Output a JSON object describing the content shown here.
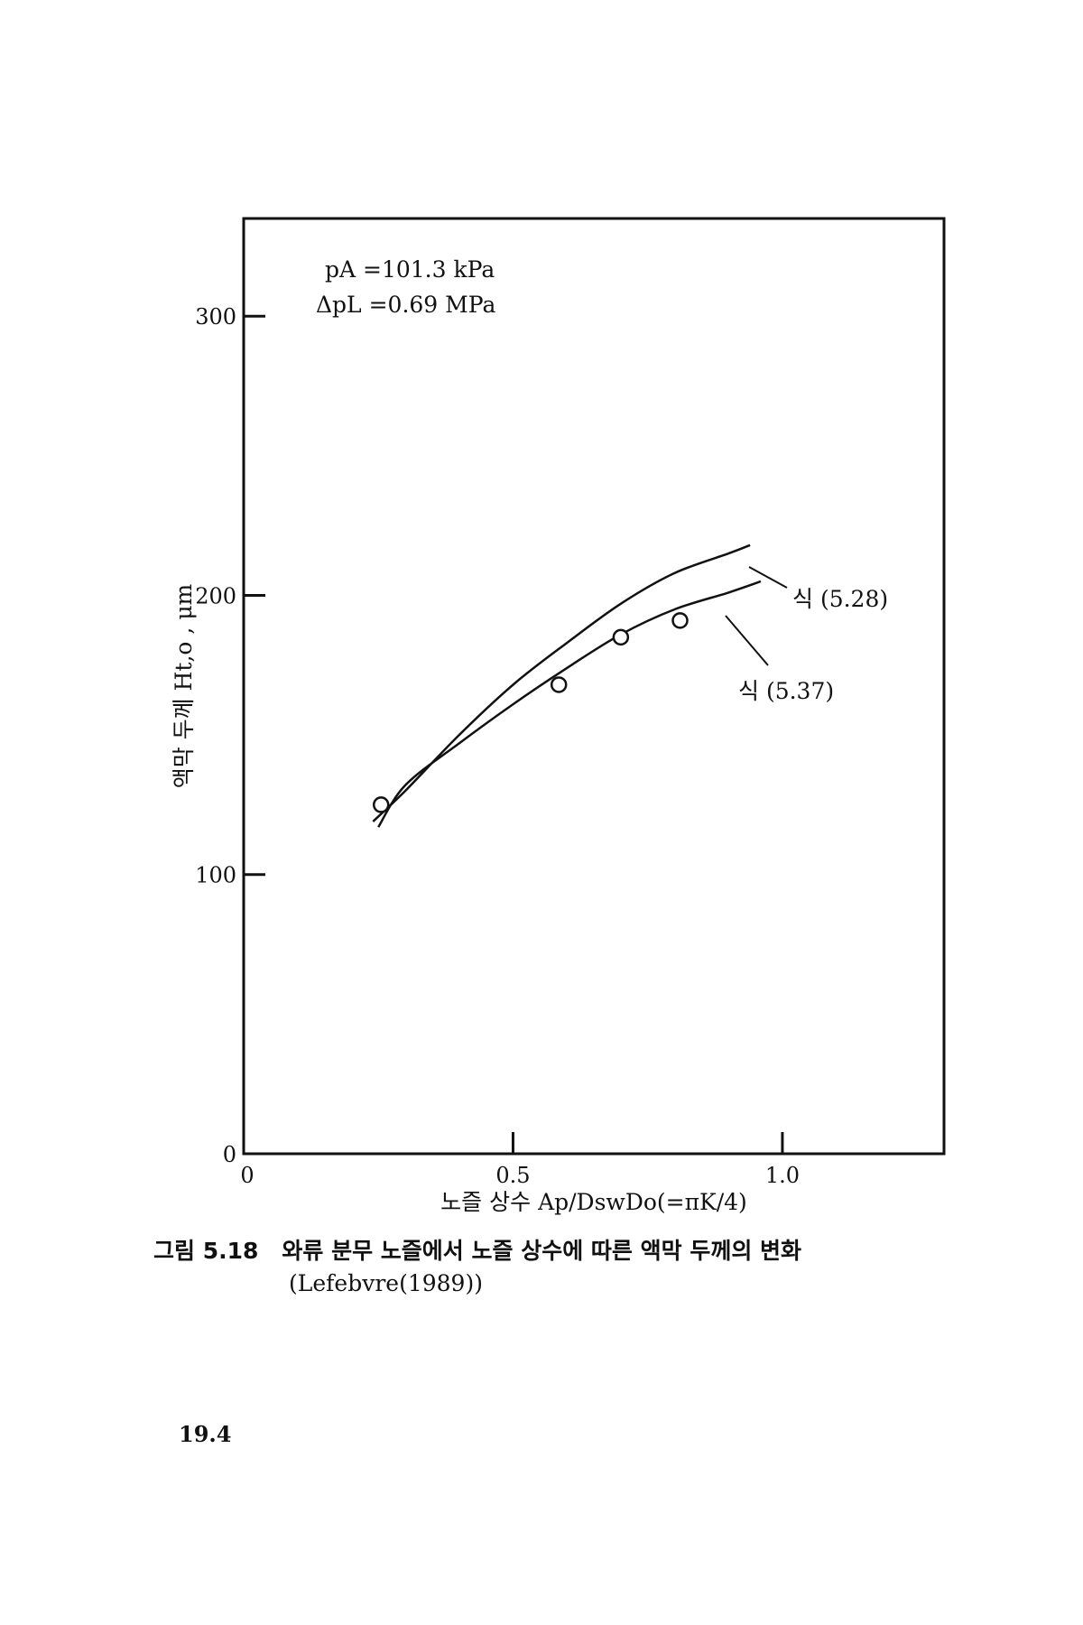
{
  "chart_data": {
    "type": "line",
    "title": "",
    "xlabel": "노즐 상수 Ap/DswDo(=πK/4)",
    "ylabel": "액막 두께 Ht,o , μm",
    "xlim": [
      0,
      1.3
    ],
    "ylim": [
      0,
      335
    ],
    "x_ticks": [
      0,
      0.5,
      1.0
    ],
    "x_tick_labels": [
      "0",
      "0.5",
      "1.0"
    ],
    "y_ticks": [
      0,
      100,
      200,
      300
    ],
    "y_tick_labels": [
      "0",
      "100",
      "200",
      "300"
    ],
    "grid": false,
    "conditions": [
      "pA =101.3 kPa",
      "ΔpL =0.69 MPa"
    ],
    "series": [
      {
        "name": "식 (5.28)",
        "kind": "line",
        "x": [
          0.24,
          0.3,
          0.4,
          0.5,
          0.6,
          0.7,
          0.8,
          0.9,
          0.94
        ],
        "y": [
          119,
          130,
          150,
          168,
          183,
          197,
          208,
          215,
          218
        ]
      },
      {
        "name": "식 (5.37)",
        "kind": "line",
        "x": [
          0.25,
          0.3,
          0.4,
          0.5,
          0.6,
          0.7,
          0.8,
          0.9,
          0.96
        ],
        "y": [
          117,
          132,
          147,
          161,
          174,
          186,
          195,
          201,
          205
        ]
      },
      {
        "name": "",
        "kind": "scatter",
        "x": [
          0.255,
          0.585,
          0.7,
          0.81
        ],
        "y": [
          125,
          168,
          185,
          191
        ]
      }
    ]
  },
  "figure_caption": {
    "number": "그림 5.18",
    "text": "와류 분무 노즐에서 노즐 상수에 따른 액막 두께의 변화",
    "source": "(Lefebvre(1989))"
  },
  "page_number": "19.4"
}
